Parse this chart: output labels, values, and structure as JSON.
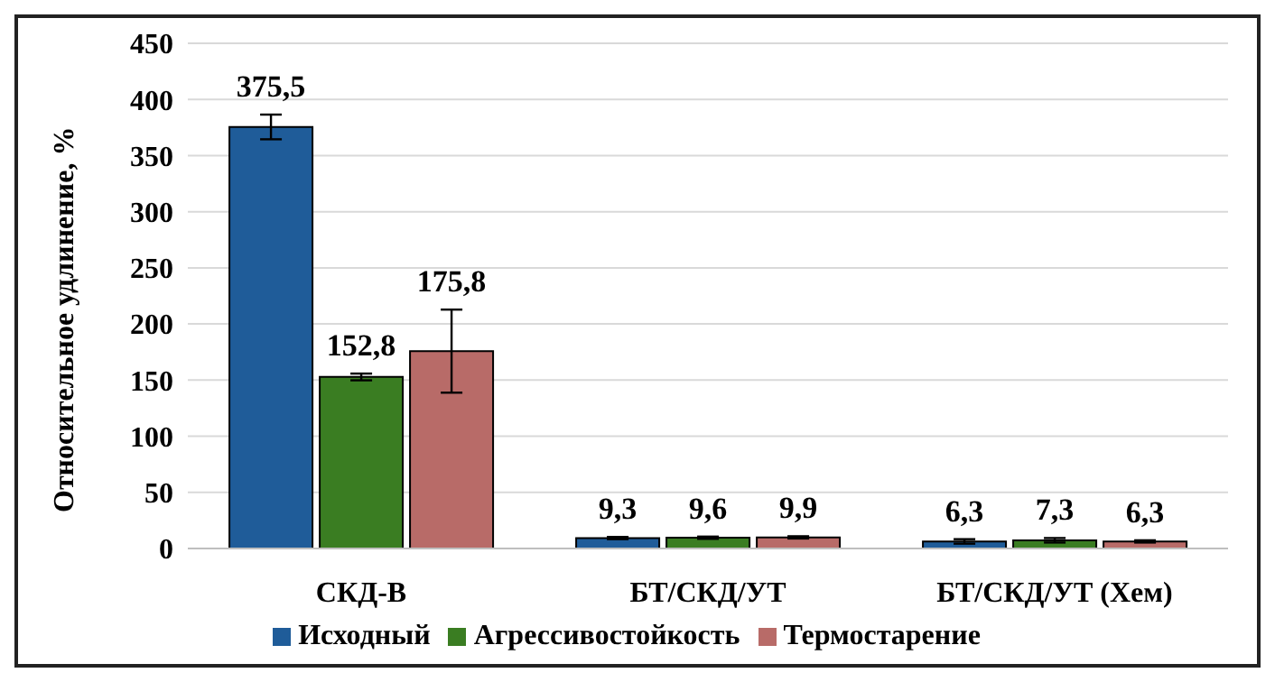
{
  "chart_data": {
    "type": "bar",
    "ylabel": "Относительное  удлинение,  %",
    "categories": [
      "СКД-В",
      "БТ/СКД/УТ",
      "БТ/СКД/УТ  (Хем)"
    ],
    "series": [
      {
        "name": "Исходный",
        "color": "#1f5c99",
        "values": [
          375.5,
          9.3,
          6.3
        ],
        "errors": [
          11,
          1,
          2
        ],
        "value_labels": [
          "375,5",
          "9,3",
          "6,3"
        ]
      },
      {
        "name": "Агрессивостойкость",
        "color": "#3a7d22",
        "values": [
          152.8,
          9.6,
          7.3
        ],
        "errors": [
          3,
          1,
          2
        ],
        "value_labels": [
          "152,8",
          "9,6",
          "7,3"
        ]
      },
      {
        "name": "Термостарение",
        "color": "#b86b68",
        "values": [
          175.8,
          9.9,
          6.3
        ],
        "errors": [
          37,
          1,
          1
        ],
        "value_labels": [
          "175,8",
          "9,9",
          "6,3"
        ]
      }
    ],
    "ylim": [
      0,
      450
    ],
    "yticks": [
      0,
      50,
      100,
      150,
      200,
      250,
      300,
      350,
      400,
      450
    ],
    "grid": "y",
    "legend": "bottom"
  }
}
